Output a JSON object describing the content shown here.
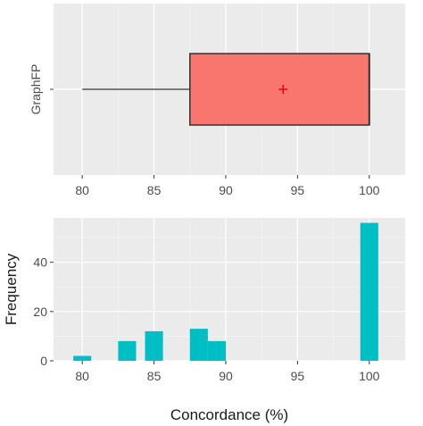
{
  "colors": {
    "box_fill": "#f8766d",
    "box_stroke": "#333333",
    "mean_marker": "#e8000b",
    "hist_fill": "#00bfc4",
    "panel_bg": "#ebebeb",
    "grid": "#ffffff"
  },
  "chart_data": [
    {
      "type": "boxplot",
      "orientation": "horizontal",
      "category": "GraphFP",
      "xlim": [
        78,
        102.5
      ],
      "x_ticks": [
        80,
        85,
        90,
        95,
        100
      ],
      "x_tick_labels": [
        "80",
        "85",
        "90",
        "95",
        "100"
      ],
      "stats": {
        "min": 80,
        "q1": 87.5,
        "median": 100,
        "q3": 100,
        "max": 100,
        "mean": 94
      },
      "grid": true
    },
    {
      "type": "bar",
      "subtype": "histogram",
      "xlim": [
        78,
        102.5
      ],
      "ylim": [
        0,
        58
      ],
      "x_ticks": [
        80,
        85,
        90,
        95,
        100
      ],
      "x_tick_labels": [
        "80",
        "85",
        "90",
        "95",
        "100"
      ],
      "y_ticks": [
        0,
        20,
        40
      ],
      "y_tick_labels": [
        "0",
        "20",
        "40"
      ],
      "xlabel": "Concordance (%)",
      "ylabel": "Frequency",
      "bin_width": 1.25,
      "bins": [
        {
          "start": 79.375,
          "end": 80.625,
          "count": 2
        },
        {
          "start": 82.5,
          "end": 83.75,
          "count": 8
        },
        {
          "start": 84.375,
          "end": 85.625,
          "count": 12
        },
        {
          "start": 87.5,
          "end": 88.75,
          "count": 13
        },
        {
          "start": 88.75,
          "end": 90.0,
          "count": 8
        },
        {
          "start": 99.375,
          "end": 100.625,
          "count": 56
        }
      ],
      "grid": true
    }
  ]
}
